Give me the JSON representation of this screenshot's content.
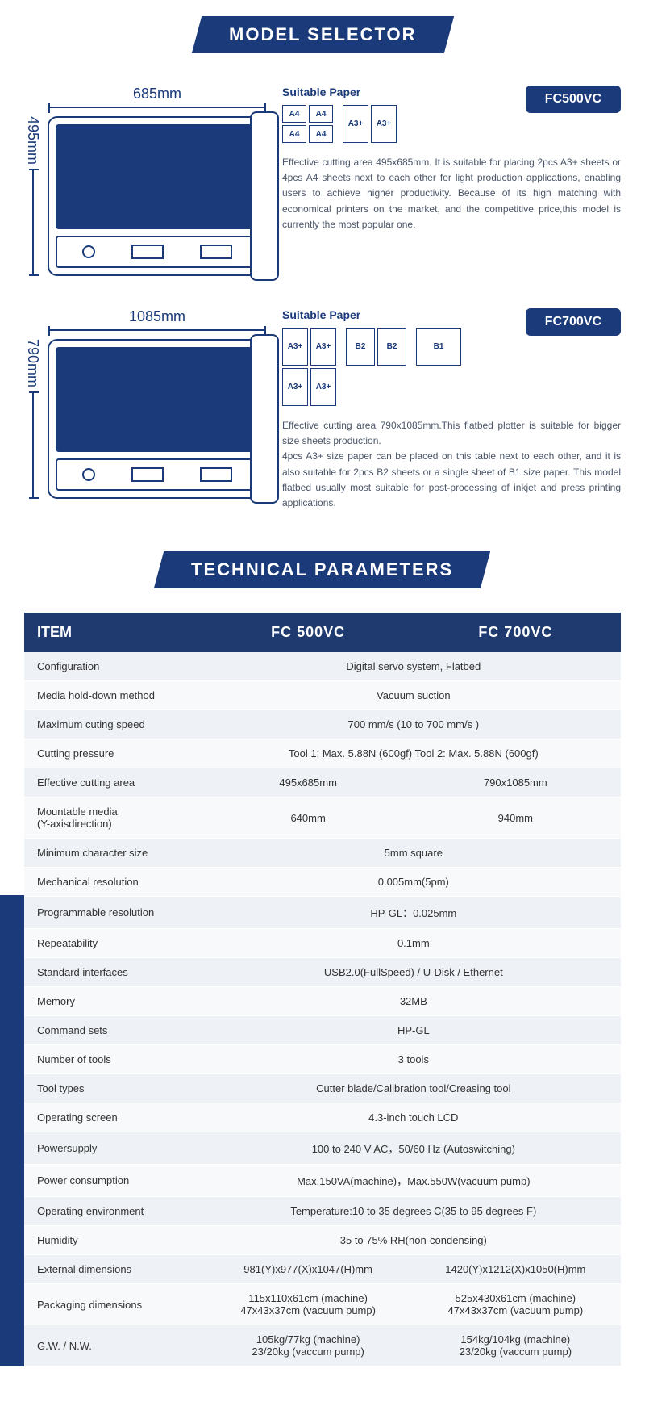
{
  "sections": {
    "model_selector_title": "MODEL SELECTOR",
    "tech_params_title": "TECHNICAL PARAMETERS"
  },
  "models": [
    {
      "badge": "FC500VC",
      "width_label": "685mm",
      "height_label": "495mm",
      "suitable_label": "Suitable Paper",
      "paper_groups": [
        {
          "type": "grid2x2",
          "cells": [
            "A4",
            "A4",
            "A4",
            "A4"
          ],
          "cls": "p-a4"
        },
        {
          "type": "row",
          "cells": [
            "A3+",
            "A3+"
          ],
          "cls": "p-a3p"
        }
      ],
      "desc": "Effective cutting area 495x685mm. It is suitable for placing 2pcs A3+ sheets or 4pcs A4 sheets next to each other for light production applications, enabling users to achieve higher productivity. Because of its high matching with economical printers on the market, and the competitive price,this model is currently the most popular one."
    },
    {
      "badge": "FC700VC",
      "width_label": "1085mm",
      "height_label": "790mm",
      "suitable_label": "Suitable Paper",
      "paper_groups": [
        {
          "type": "grid2x2",
          "cells": [
            "A3+",
            "A3+",
            "A3+",
            "A3+"
          ],
          "cls": "p-a3p"
        },
        {
          "type": "row",
          "cells": [
            "B2",
            "B2"
          ],
          "cls": "p-b2"
        },
        {
          "type": "row",
          "cells": [
            "B1"
          ],
          "cls": "p-b1"
        }
      ],
      "desc": "Effective cutting area 790x1085mm.This flatbed plotter is suitable for bigger size sheets production.\n4pcs A3+ size paper can be placed on this table next to each other, and it is also suitable for 2pcs B2 sheets or a single sheet of B1 size paper. This model flatbed usually most suitable for post-processing of inkjet and press printing applications."
    }
  ],
  "table": {
    "headers": [
      "ITEM",
      "FC 500VC",
      "FC 700VC"
    ],
    "rows": [
      {
        "label": "Configuration",
        "span": "Digital servo system, Flatbed"
      },
      {
        "label": "Media hold-down method",
        "span": "Vacuum suction"
      },
      {
        "label": "Maximum cuting speed",
        "span": "700 mm/s (10 to 700 mm/s )"
      },
      {
        "label": "Cutting pressure",
        "span": "Tool 1: Max. 5.88N (600gf)  Tool 2: Max. 5.88N (600gf)"
      },
      {
        "label": "Effective cutting area",
        "c1": "495x685mm",
        "c2": "790x1085mm"
      },
      {
        "label": "Mountable media\n(Y-axisdirection)",
        "c1": "640mm",
        "c2": "940mm"
      },
      {
        "label": "Minimum character size",
        "span": "5mm square"
      },
      {
        "label": "Mechanical resolution",
        "span": "0.005mm(5pm)"
      },
      {
        "label": "Programmable resolution",
        "span": "HP-GL：0.025mm"
      },
      {
        "label": "Repeatability",
        "span": "0.1mm"
      },
      {
        "label": "Standard interfaces",
        "span": "USB2.0(FullSpeed) / U-Disk / Ethernet"
      },
      {
        "label": "Memory",
        "span": "32MB"
      },
      {
        "label": "Command sets",
        "span": "HP-GL"
      },
      {
        "label": "Number of tools",
        "span": "3 tools"
      },
      {
        "label": "Tool types",
        "span": "Cutter blade/Calibration tool/Creasing tool"
      },
      {
        "label": "Operating screen",
        "span": "4.3-inch touch LCD"
      },
      {
        "label": "Powersupply",
        "span": "100 to 240 V AC，50/60 Hz (Autoswitching)"
      },
      {
        "label": "Power consumption",
        "span": "Max.150VA(machine)，Max.550W(vacuum pump)"
      },
      {
        "label": "Operating environment",
        "span": "Temperature:10 to 35 degrees C(35 to 95 degrees F)"
      },
      {
        "label": "Humidity",
        "span": "35 to 75% RH(non-condensing)"
      },
      {
        "label": "External dimensions",
        "c1": "981(Y)x977(X)x1047(H)mm",
        "c2": "1420(Y)x1212(X)x1050(H)mm"
      },
      {
        "label": "Packaging dimensions",
        "c1": "115x110x61cm (machine)\n47x43x37cm (vacuum pump)",
        "c2": "525x430x61cm (machine)\n47x43x37cm (vacuum pump)"
      },
      {
        "label": "G.W. / N.W.",
        "c1": "105kg/77kg (machine)\n23/20kg (vaccum pump)",
        "c2": "154kg/104kg (machine)\n23/20kg (vaccum pump)"
      }
    ]
  },
  "colors": {
    "primary": "#1a3a7a",
    "row_odd": "#eef1f5",
    "row_even": "#f8f9fb"
  }
}
